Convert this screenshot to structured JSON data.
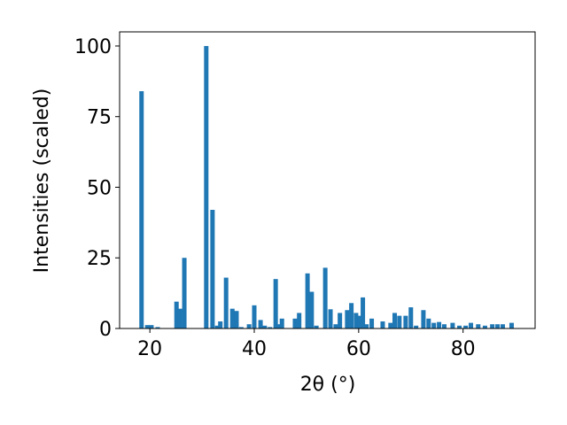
{
  "chart_data": {
    "type": "bar",
    "xlabel": "2θ (°)",
    "ylabel": "Intensities (scaled)",
    "x": [
      18.4,
      19.5,
      20.3,
      21.5,
      25.1,
      25.8,
      26.6,
      30.8,
      32.0,
      32.9,
      33.5,
      34.6,
      35.8,
      36.6,
      37.5,
      39.0,
      40.0,
      41.2,
      42.0,
      43.0,
      44.1,
      44.9,
      45.3,
      47.8,
      48.6,
      50.2,
      51.0,
      51.9,
      53.6,
      54.6,
      55.6,
      56.4,
      57.8,
      58.6,
      59.5,
      60.2,
      60.8,
      61.5,
      62.5,
      64.6,
      66.1,
      66.9,
      67.8,
      69.0,
      70.0,
      71.0,
      72.4,
      73.4,
      74.4,
      75.4,
      76.4,
      78.0,
      79.3,
      80.5,
      81.5,
      82.9,
      84.2,
      85.6,
      86.6,
      87.6,
      89.3
    ],
    "values": [
      84,
      1.2,
      1.2,
      0.5,
      9.5,
      7,
      25,
      100,
      42,
      1,
      2.5,
      18,
      7,
      6.2,
      0.5,
      1.5,
      8.2,
      3,
      1,
      0.5,
      17.5,
      1.5,
      3.5,
      3.5,
      5.5,
      19.5,
      13,
      1,
      21.5,
      6.8,
      1.5,
      5.5,
      6.5,
      9,
      5.5,
      4.5,
      11,
      1.5,
      3.5,
      2.5,
      2,
      5.5,
      4.5,
      4.5,
      7.5,
      1,
      6.5,
      3.5,
      2,
      2.3,
      1.5,
      2,
      1,
      1,
      2,
      1.5,
      1,
      1.5,
      1.5,
      1.5,
      2
    ],
    "color": "#1f77b4",
    "xlim": [
      14.2,
      93.8
    ],
    "ylim": [
      0,
      105
    ],
    "xticks": [
      20,
      40,
      60,
      80
    ],
    "yticks": [
      0,
      25,
      50,
      75,
      100
    ]
  }
}
